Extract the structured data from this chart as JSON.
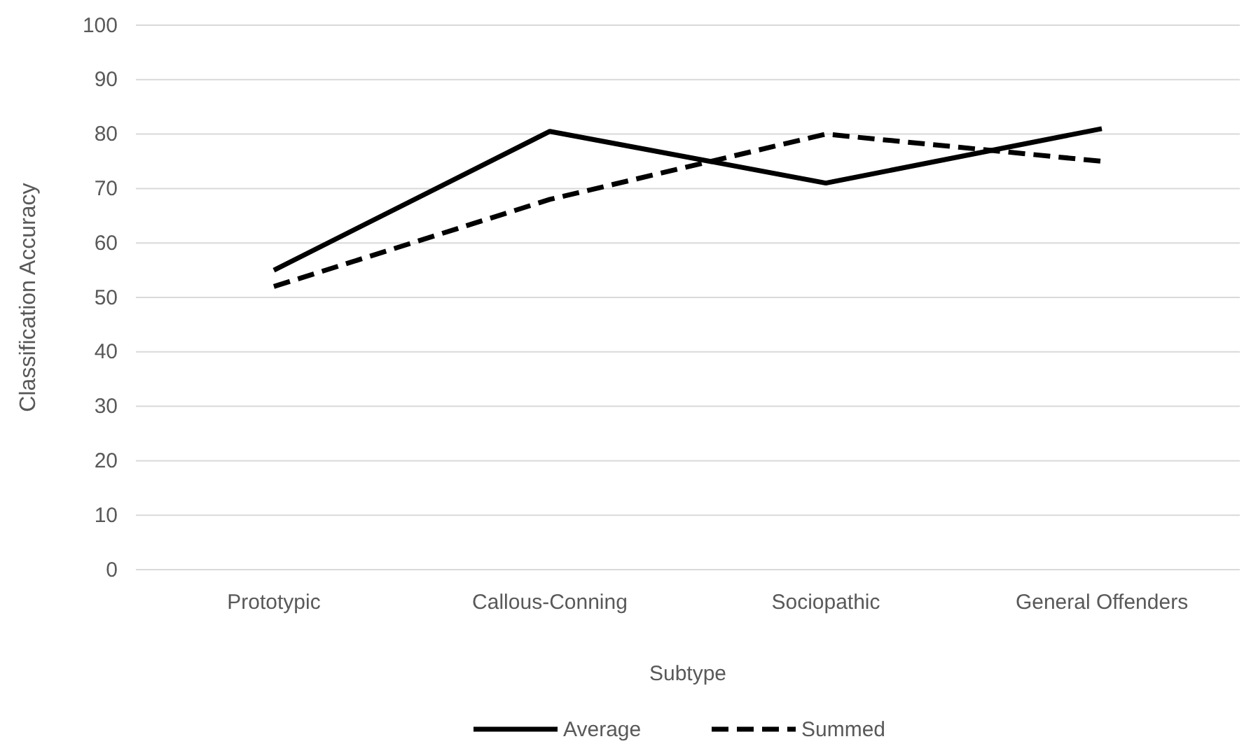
{
  "chart_data": {
    "type": "line",
    "xlabel": "Subtype",
    "ylabel": "Classification Accuracy",
    "categories": [
      "Prototypic",
      "Callous-Conning",
      "Sociopathic",
      "General Offenders"
    ],
    "series": [
      {
        "name": "Average",
        "color": "#000000",
        "line_style": "solid",
        "values": [
          55,
          80.5,
          71,
          81
        ]
      },
      {
        "name": "Summed",
        "color": "#000000",
        "line_style": "dashed",
        "values": [
          52,
          68,
          80,
          75
        ]
      }
    ],
    "ylim": [
      0,
      100
    ],
    "yticks": [
      0,
      10,
      20,
      30,
      40,
      50,
      60,
      70,
      80,
      90,
      100
    ],
    "grid": "y",
    "legend": "bottom",
    "marker": "none"
  }
}
